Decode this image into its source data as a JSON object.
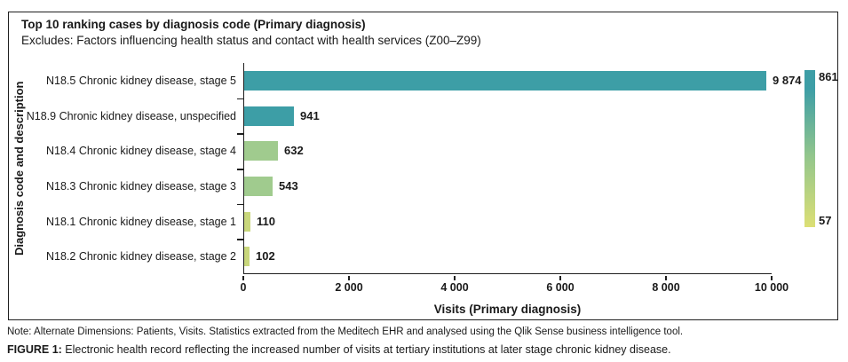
{
  "figure": {
    "title": "Top 10 ranking cases by diagnosis code (Primary diagnosis)",
    "subtitle": "Excludes: Factors influencing health status and contact with health services (Z00–Z99)"
  },
  "chart_data": {
    "type": "bar",
    "orientation": "horizontal",
    "title": "Top 10 ranking cases by diagnosis code (Primary diagnosis)",
    "subtitle": "Excludes: Factors influencing health status and contact with health services (Z00–Z99)",
    "xlabel": "Visits (Primary diagnosis)",
    "ylabel": "Diagnosis code and description",
    "xlim": [
      0,
      10000
    ],
    "grid": false,
    "legend_position": "right",
    "categories": [
      "N18.5 Chronic kidney disease, stage 5",
      "N18.9 Chronic kidney disease, unspecified",
      "N18.4 Chronic kidney disease, stage 4",
      "N18.3 Chronic kidney disease, stage 3",
      "N18.1 Chronic kidney disease, stage 1",
      "N18.2 Chronic kidney disease, stage 2"
    ],
    "values": [
      9874,
      941,
      632,
      543,
      110,
      102
    ],
    "value_labels": [
      "9 874",
      "941",
      "632",
      "543",
      "110",
      "102"
    ],
    "bar_colors": [
      "#3D9EA6",
      "#3D9EA6",
      "#A0CB8E",
      "#A0CB8E",
      "#C9D77C",
      "#C9D77C"
    ],
    "xticks": [
      {
        "value": 0,
        "label": "0"
      },
      {
        "value": 2000,
        "label": "2 000"
      },
      {
        "value": 4000,
        "label": "4 000"
      },
      {
        "value": 6000,
        "label": "6 000"
      },
      {
        "value": 8000,
        "label": "8 000"
      },
      {
        "value": 10000,
        "label": "10 000"
      }
    ],
    "color_legend": {
      "max_label": "861",
      "min_label": "57",
      "top_color": "#3D9EA6",
      "mid_color": "#93C68C",
      "bottom_color": "#DCDF75"
    }
  },
  "note": "Note: Alternate Dimensions: Patients, Visits. Statistics extracted from the Meditech EHR and analysed using the Qlik Sense business intelligence tool.",
  "caption": {
    "prefix": "FIGURE 1:",
    "text": " Electronic health record reflecting the increased number of visits at tertiary institutions at later stage chronic kidney disease."
  }
}
